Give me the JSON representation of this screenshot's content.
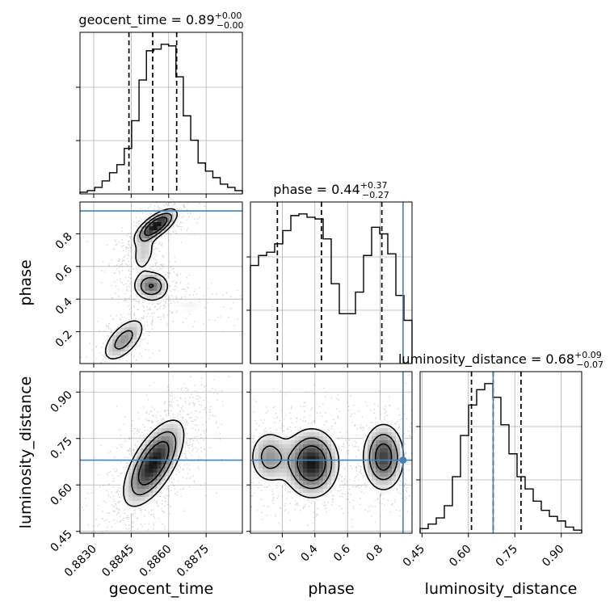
{
  "chart_data": {
    "type": "corner",
    "parameters": [
      "geocent_time",
      "phase",
      "luminosity_distance"
    ],
    "titles": [
      {
        "param": "geocent_time",
        "text": "geocent_time = 0.89",
        "median": 0.89,
        "plus": "+0.00",
        "minus": "−0.00"
      },
      {
        "param": "phase",
        "text": "phase = 0.44",
        "median": 0.44,
        "plus": "+0.37",
        "minus": "−0.27"
      },
      {
        "param": "luminosity_distance",
        "text": "luminosity_distance = 0.68",
        "median": 0.68,
        "plus": "+0.09",
        "minus": "−0.07"
      }
    ],
    "ranges": {
      "geocent_time": [
        0.88245,
        0.88895
      ],
      "phase": [
        0.005,
        0.995
      ],
      "luminosity_distance": [
        0.444,
        0.966
      ]
    },
    "ticks": {
      "geocent_time": [
        0.883,
        0.8845,
        0.886,
        0.8875
      ],
      "phase": [
        0.2,
        0.4,
        0.6,
        0.8
      ],
      "luminosity_distance": [
        0.45,
        0.6,
        0.75,
        0.9
      ]
    },
    "tick_labels": {
      "geocent_time": [
        "0.8830",
        "0.8845",
        "0.8860",
        "0.8875"
      ],
      "phase": [
        "0.2",
        "0.4",
        "0.6",
        "0.8"
      ],
      "phase_y": [
        "0.2",
        "0.4",
        "0.6",
        "0.8"
      ],
      "luminosity_distance": [
        "0.45",
        "0.60",
        "0.75",
        "0.90"
      ]
    },
    "quantiles": {
      "geocent_time": [
        0.88441,
        0.88536,
        0.88632
      ],
      "phase": [
        0.17,
        0.44,
        0.81
      ],
      "luminosity_distance": [
        0.61,
        0.68,
        0.77
      ]
    },
    "truths": {
      "phase": 0.94,
      "luminosity_distance": 0.68
    },
    "histograms": {
      "geocent_time": [
        1,
        2,
        4,
        8,
        13,
        18,
        28,
        45,
        70,
        88,
        89,
        92,
        91,
        72,
        48,
        33,
        19,
        14,
        10,
        6,
        4,
        2
      ],
      "phase": [
        59,
        65,
        67,
        72,
        80,
        89,
        90,
        88,
        87,
        75,
        48,
        30,
        30,
        43,
        65,
        82,
        78,
        66,
        41,
        26
      ],
      "luminosity_distance": [
        3,
        6,
        10,
        18,
        37,
        64,
        84,
        94,
        98,
        89,
        71,
        52,
        37,
        29,
        21,
        15,
        11,
        8,
        4,
        2
      ]
    },
    "density_blobs": {
      "geocent_time_phase": [
        {
          "x": 0.8855,
          "y": 0.85,
          "sx": 0.00045,
          "sy": 0.055,
          "rho": 0.7,
          "w": 1.0
        },
        {
          "x": 0.8853,
          "y": 0.48,
          "sx": 0.0004,
          "sy": 0.05,
          "rho": 0.0,
          "w": 0.65
        },
        {
          "x": 0.8842,
          "y": 0.15,
          "sx": 0.0005,
          "sy": 0.08,
          "rho": 0.6,
          "w": 0.5
        },
        {
          "x": 0.885,
          "y": 0.68,
          "sx": 0.0003,
          "sy": 0.07,
          "rho": 0.3,
          "w": 0.3
        },
        {
          "x": 0.8868,
          "y": 0.36,
          "sx": 0.0008,
          "sy": 0.04,
          "rho": 0.0,
          "w": 0.15
        }
      ],
      "geocent_time_luminosity_distance": [
        {
          "x": 0.8854,
          "y": 0.67,
          "sx": 0.00065,
          "sy": 0.075,
          "rho": 0.65,
          "w": 1.0
        }
      ],
      "phase_luminosity_distance": [
        {
          "x": 0.38,
          "y": 0.67,
          "sx": 0.09,
          "sy": 0.06,
          "rho": 0.0,
          "w": 0.9
        },
        {
          "x": 0.12,
          "y": 0.69,
          "sx": 0.07,
          "sy": 0.05,
          "rho": 0.0,
          "w": 0.45
        },
        {
          "x": 0.82,
          "y": 0.69,
          "sx": 0.07,
          "sy": 0.06,
          "rho": 0.0,
          "w": 0.75
        }
      ]
    },
    "xlabels": [
      "geocent_time",
      "phase",
      "luminosity_distance"
    ],
    "ylabels": [
      "phase",
      "luminosity_distance"
    ],
    "colors": {
      "truth": "#4682b4",
      "contour": "#000000",
      "grid": "#b0b0b0",
      "scatter": "#9a9a9a"
    }
  }
}
